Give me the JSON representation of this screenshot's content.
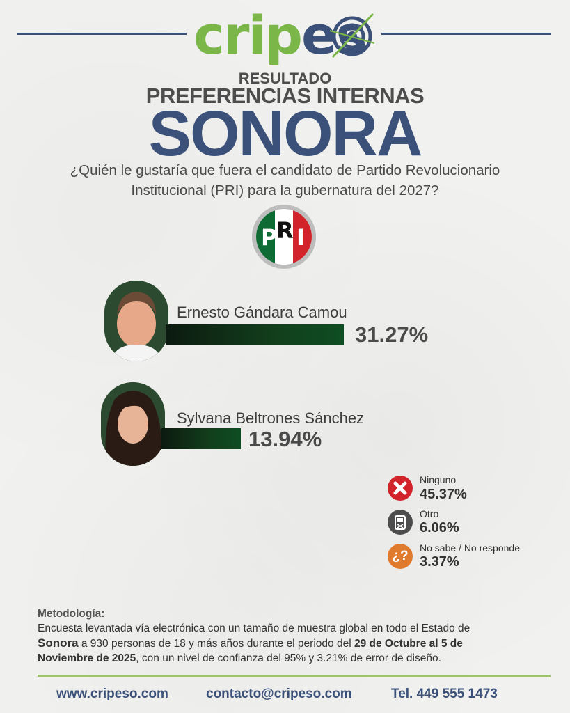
{
  "brand": {
    "logo_text_green": "crip",
    "logo_text_dark": "es",
    "colors": {
      "green": "#7ab648",
      "navy": "#3b5179",
      "pri_green": "#0e6b34",
      "pri_red": "#d2232a"
    }
  },
  "header": {
    "line1": "RESULTADO",
    "line2": "PREFERENCIAS INTERNAS",
    "line3": "SONORA",
    "question_line1": "¿Quién le gustaría que fuera el candidato de Partido Revolucionario",
    "question_line2": "Institucional (PRI) para la gubernatura del 2027?"
  },
  "party_logo": {
    "letters": [
      "P",
      "R",
      "I"
    ],
    "icon": "pri-logo-icon"
  },
  "chart_data": {
    "type": "bar",
    "categories": [
      "Ernesto Gándara Camou",
      "Sylvana Beltrones Sánchez"
    ],
    "values": [
      31.27,
      13.94
    ],
    "labels": [
      "31.27%",
      "13.94%"
    ],
    "unit": "%"
  },
  "other_options": [
    {
      "label": "Ninguno",
      "value": "45.37%",
      "icon": "x-icon",
      "color": "#d2232a"
    },
    {
      "label": "Otro",
      "value": "6.06%",
      "icon": "ballot-box-icon",
      "color": "#4d4d4d"
    },
    {
      "label": "No sabe / No responde",
      "value": "3.37%",
      "icon": "question-mark-icon",
      "color": "#e07b2e"
    }
  ],
  "methodology": {
    "title": "Metodología:",
    "t1": "Encuesta levantada vía electrónica con un tamaño de muestra global en todo el Estado de",
    "b1": "Sonora",
    "t2": " a 930 personas de 18 y más años durante el periodo del ",
    "b2": "29 de Octubre al 5 de",
    "b3": "Noviembre de 2025",
    "t3": ", con un nivel de confianza del 95% y 3.21% de error de diseño."
  },
  "footer": {
    "website": "www.cripeso.com",
    "email": "contacto@cripeso.com",
    "phone": "Tel. 449 555 1473"
  }
}
